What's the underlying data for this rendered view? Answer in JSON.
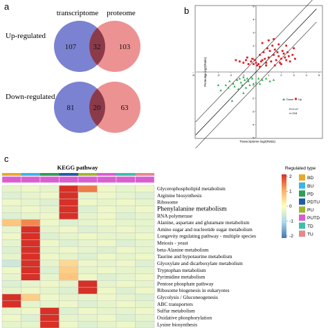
{
  "panel_labels": {
    "a": "a",
    "b": "b",
    "c": "c"
  },
  "venn": {
    "set_labels": [
      "transcriptome",
      "proteome"
    ],
    "groups": [
      {
        "label": "Up-regulated",
        "left": "107",
        "overlap": "32",
        "right": "103"
      },
      {
        "label": "Down-regulated",
        "left": "81",
        "overlap": "20",
        "right": "63"
      }
    ],
    "colors": {
      "left": "#7b82d1",
      "right": "#ea7f7f",
      "overlap": "#8b3a4a"
    }
  },
  "chart_data": [
    {
      "type": "scatter",
      "xlabel": "Transcriptome log2(Ratio)",
      "ylabel": "Proteome log2(Ratio)",
      "xlim": [
        -5,
        5
      ],
      "ylim": [
        -5,
        5
      ],
      "xticks": [
        "-5",
        "-4",
        "-3",
        "-2",
        "-1",
        "1",
        "2",
        "3",
        "4",
        "5"
      ],
      "yticks": [
        "5",
        "4",
        "3",
        "2",
        "1",
        "-1",
        "-2",
        "-3",
        "-4",
        "-5"
      ],
      "legend": [
        "Down",
        "Up"
      ],
      "legend_placement": "bottom-right",
      "stats": [
        "R=0.47",
        "n=218"
      ],
      "colors": {
        "Down": "#22a84a",
        "Up": "#dd1f26"
      },
      "series": [
        {
          "name": "Up",
          "points": [
            [
              0.2,
              0.6
            ],
            [
              0.5,
              0.9
            ],
            [
              0.8,
              0.7
            ],
            [
              1.0,
              1.1
            ],
            [
              1.2,
              0.8
            ],
            [
              1.4,
              1.3
            ],
            [
              1.6,
              0.9
            ],
            [
              1.8,
              1.2
            ],
            [
              2.0,
              1.0
            ],
            [
              2.2,
              1.4
            ],
            [
              2.4,
              0.9
            ],
            [
              2.6,
              1.2
            ],
            [
              0.3,
              1.3
            ],
            [
              0.6,
              1.5
            ],
            [
              0.9,
              1.8
            ],
            [
              1.1,
              1.6
            ],
            [
              1.3,
              2.0
            ],
            [
              1.5,
              1.7
            ],
            [
              1.7,
              1.5
            ],
            [
              0.4,
              0.8
            ],
            [
              0.7,
              1.0
            ],
            [
              1.9,
              0.7
            ],
            [
              2.1,
              1.6
            ],
            [
              2.3,
              1.1
            ],
            [
              2.5,
              1.5
            ],
            [
              2.7,
              0.8
            ],
            [
              2.9,
              1.3
            ],
            [
              3.1,
              1.0
            ],
            [
              0.1,
              0.5
            ],
            [
              0.0,
              0.7
            ],
            [
              -0.2,
              0.6
            ],
            [
              -0.4,
              0.8
            ],
            [
              -0.6,
              0.6
            ],
            [
              -0.8,
              0.9
            ],
            [
              -1.0,
              0.7
            ],
            [
              -1.3,
              0.8
            ],
            [
              -0.3,
              1.0
            ],
            [
              -0.7,
              1.1
            ],
            [
              -1.6,
              0.9
            ],
            [
              0.5,
              2.2
            ],
            [
              1.0,
              2.4
            ],
            [
              1.4,
              2.5
            ],
            [
              1.8,
              2.1
            ],
            [
              2.4,
              2.0
            ],
            [
              3.0,
              1.8
            ],
            [
              0.8,
              0.5
            ],
            [
              1.5,
              0.5
            ],
            [
              2.0,
              0.6
            ],
            [
              -0.1,
              0.9
            ],
            [
              0.3,
              0.4
            ]
          ]
        },
        {
          "name": "Down",
          "points": [
            [
              -0.3,
              -0.5
            ],
            [
              -0.6,
              -0.7
            ],
            [
              -0.9,
              -0.6
            ],
            [
              -1.2,
              -0.8
            ],
            [
              -1.5,
              -0.6
            ],
            [
              -1.8,
              -0.9
            ],
            [
              -2.1,
              -0.7
            ],
            [
              -0.5,
              -1.0
            ],
            [
              -0.8,
              -1.2
            ],
            [
              -1.1,
              -1.0
            ],
            [
              -1.4,
              -1.3
            ],
            [
              -2.4,
              -1.0
            ],
            [
              -2.8,
              -1.4
            ],
            [
              -1.9,
              -2.2
            ],
            [
              -1.0,
              -1.6
            ],
            [
              0.2,
              -0.5
            ],
            [
              0.5,
              -0.6
            ],
            [
              0.8,
              -0.5
            ],
            [
              1.1,
              -0.7
            ],
            [
              1.4,
              -0.6
            ],
            [
              0.0,
              -0.8
            ],
            [
              -0.2,
              -0.9
            ],
            [
              -1.7,
              -1.1
            ],
            [
              -3.0,
              -1.0
            ],
            [
              -0.4,
              -0.4
            ],
            [
              -1.3,
              -0.5
            ],
            [
              -2.2,
              -1.2
            ],
            [
              0.3,
              -0.9
            ],
            [
              -0.7,
              -0.5
            ],
            [
              -1.0,
              -0.4
            ]
          ]
        }
      ]
    },
    {
      "type": "heatmap",
      "title": "KEGG pathway",
      "value_range": [
        -2,
        2
      ],
      "legend_title": "Regulated type",
      "columns": [
        "BD",
        "BU",
        "PD",
        "PDTU",
        "PU",
        "PUTD",
        "TD",
        "TU"
      ],
      "column_colors": [
        "#e8a92a",
        "#3bb6e6",
        "#2f9e57",
        "#1e5ea8",
        "#9fb829",
        "#d95fd1",
        "#3bbfa9",
        "#e58a8a"
      ],
      "rows": [
        "Glycerophospholipid metabolism",
        "Arginine biosynthesis",
        "Ribosome",
        "Phenylalanine metabolism",
        "RNA polymerase",
        "Alanine, aspartate and glutamate metabolism",
        "Amino sugar and nucleotide sugar metabolism",
        "Longevity regulating pathway - multiple species",
        "Meiosis - yeast",
        "beta-Alanine metabolism",
        "Taurine and hypotaurine metabolism",
        "Glyoxylate and dicarboxylate metabolism",
        "Tryptophan metabolism",
        "Pyrimidine metabolism",
        "Pentose phosphate pathway",
        "Ribosome biogenesis in eukaryotes",
        "Glycolysis / Gluconeogenesis",
        "ABC transporters",
        "Sulfur metabolism",
        "Oxidative phosphorylation",
        "Lysine biosynthesis"
      ],
      "large_rows": [
        3
      ],
      "values": [
        [
          -0.3,
          -0.2,
          -0.3,
          2.2,
          1.4,
          -0.2,
          -0.3,
          -0.2
        ],
        [
          -0.4,
          -0.3,
          -0.2,
          2.4,
          -0.3,
          -0.2,
          -0.3,
          -0.4
        ],
        [
          -0.2,
          -0.3,
          -0.4,
          2.5,
          -0.2,
          -0.3,
          -0.2,
          -0.3
        ],
        [
          -0.3,
          -0.2,
          -0.3,
          2.3,
          -0.4,
          -0.2,
          -0.3,
          -0.2
        ],
        [
          -0.4,
          -0.3,
          -0.2,
          2.4,
          -0.3,
          -0.2,
          -0.4,
          -0.3
        ],
        [
          0.7,
          1.3,
          -0.2,
          -0.4,
          -0.3,
          -0.2,
          -0.3,
          -0.3
        ],
        [
          -0.3,
          2.4,
          -0.3,
          -0.2,
          -0.4,
          -0.3,
          -0.2,
          -0.3
        ],
        [
          -0.2,
          2.5,
          -0.4,
          -0.3,
          -0.2,
          -0.3,
          -0.3,
          -0.2
        ],
        [
          -0.3,
          2.3,
          -0.2,
          -0.4,
          -0.3,
          -0.2,
          -0.4,
          -0.3
        ],
        [
          -0.4,
          2.4,
          -0.3,
          -0.2,
          -0.3,
          -0.4,
          -0.2,
          -0.3
        ],
        [
          -0.3,
          2.5,
          -0.2,
          -0.3,
          -0.4,
          -0.2,
          -0.3,
          -0.2
        ],
        [
          -0.6,
          2.3,
          -0.3,
          0.5,
          -0.2,
          -0.3,
          -0.2,
          -0.4
        ],
        [
          -0.2,
          2.4,
          -0.4,
          0.6,
          -0.3,
          -0.2,
          -0.3,
          -0.3
        ],
        [
          -0.3,
          2.2,
          -0.3,
          0.7,
          -0.2,
          -0.4,
          -0.3,
          -0.2
        ],
        [
          -0.4,
          -0.3,
          -0.2,
          -0.3,
          2.4,
          -0.3,
          -0.2,
          -0.3
        ],
        [
          -0.3,
          -0.2,
          -0.3,
          -0.4,
          2.3,
          -0.2,
          -0.4,
          -0.2
        ],
        [
          2.4,
          0.6,
          -0.2,
          -0.3,
          -0.3,
          -0.2,
          -0.3,
          -0.4
        ],
        [
          2.5,
          -0.3,
          -0.3,
          -0.2,
          -0.4,
          -0.3,
          -0.2,
          -0.3
        ],
        [
          -0.3,
          -0.2,
          2.3,
          -0.4,
          -0.2,
          -0.3,
          -0.3,
          -0.2
        ],
        [
          -0.2,
          -0.4,
          2.4,
          -0.3,
          -0.3,
          -0.2,
          -0.4,
          -0.3
        ],
        [
          -0.3,
          -0.3,
          2.5,
          -0.2,
          -0.4,
          -0.3,
          -0.2,
          -0.4
        ]
      ],
      "legend_ticks": [
        "2",
        "1",
        "0",
        "-1",
        "-2"
      ],
      "gradient_colors": [
        "#d73027",
        "#fdae61",
        "#ffffbf",
        "#abd9e9",
        "#4575b4"
      ]
    }
  ]
}
